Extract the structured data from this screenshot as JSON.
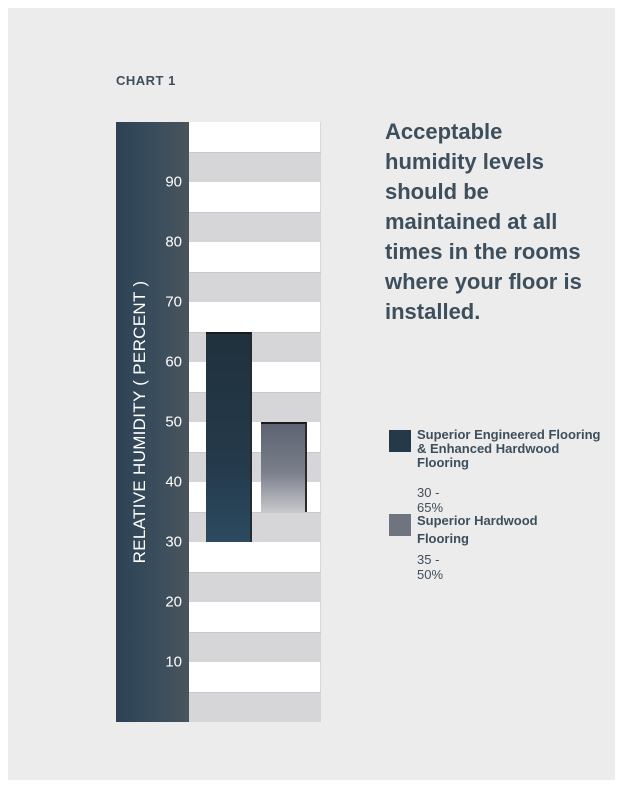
{
  "page": {
    "label": "CHART 1",
    "headline": "Acceptable humidity levels should be maintained at all times in the rooms where your floor is installed."
  },
  "chart_data": {
    "type": "bar",
    "kind": "range",
    "ylabel": "RELATIVE HUMIDITY ( PERCENT )",
    "ylim": [
      0,
      100
    ],
    "yticks": [
      10,
      20,
      30,
      40,
      50,
      60,
      70,
      80,
      90
    ],
    "grid": true,
    "legend_position": "right",
    "series": [
      {
        "name": "Superior Engineered Flooring & Enhanced Hardwood Flooring",
        "range_label": "30 - 65%",
        "low": 30,
        "high": 65,
        "color": "#24394a"
      },
      {
        "name": "Superior Hardwood Flooring",
        "range_label": "35 - 50%",
        "low": 35,
        "high": 50,
        "color": "#6e7480"
      }
    ]
  }
}
